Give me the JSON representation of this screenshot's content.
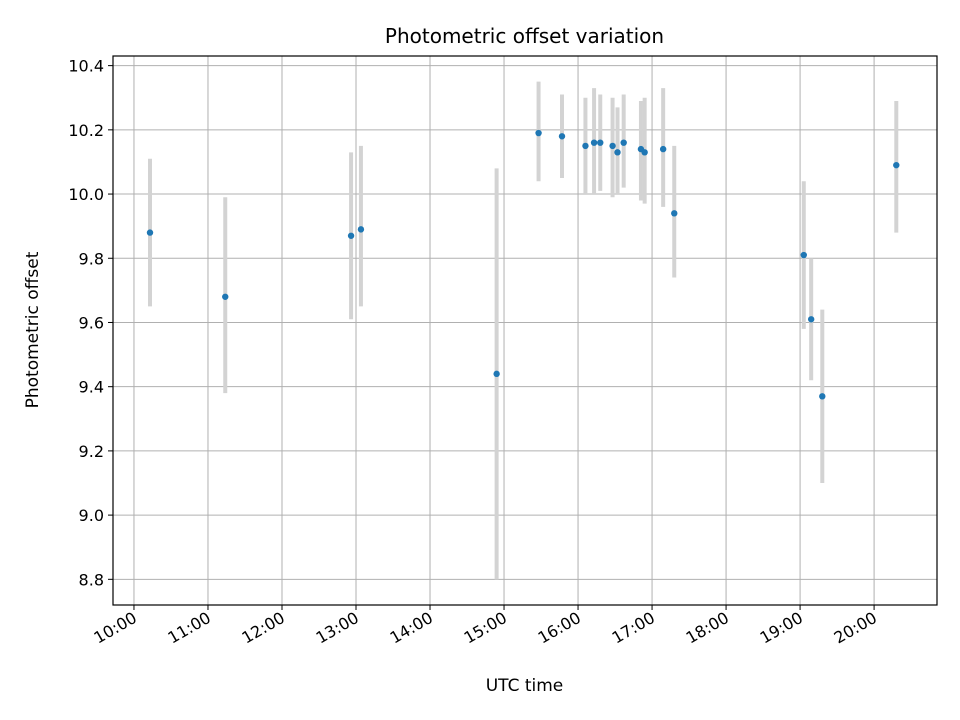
{
  "chart_data": {
    "type": "scatter",
    "title": "Photometric offset variation",
    "xlabel": "UTC time",
    "ylabel": "Photometric offset",
    "x_ticks": [
      "10:00",
      "11:00",
      "12:00",
      "13:00",
      "14:00",
      "15:00",
      "16:00",
      "17:00",
      "18:00",
      "19:00",
      "20:00"
    ],
    "y_ticks": [
      "8.8",
      "9.0",
      "9.2",
      "9.4",
      "9.6",
      "9.8",
      "10.0",
      "10.2",
      "10.4"
    ],
    "xlim": [
      "09:43",
      "20:51"
    ],
    "ylim": [
      8.72,
      10.43
    ],
    "grid": true,
    "colors": {
      "point": "#1f77b4",
      "errorbar": "#d3d3d3",
      "grid": "#b0b0b0"
    },
    "points": [
      {
        "x": "10:13",
        "y": 9.88,
        "ylo": 9.65,
        "yhi": 10.11
      },
      {
        "x": "11:14",
        "y": 9.68,
        "ylo": 9.38,
        "yhi": 9.99
      },
      {
        "x": "12:56",
        "y": 9.87,
        "ylo": 9.61,
        "yhi": 10.13
      },
      {
        "x": "13:04",
        "y": 9.89,
        "ylo": 9.65,
        "yhi": 10.15
      },
      {
        "x": "14:54",
        "y": 9.44,
        "ylo": 8.8,
        "yhi": 10.08
      },
      {
        "x": "15:28",
        "y": 10.19,
        "ylo": 10.04,
        "yhi": 10.35
      },
      {
        "x": "15:47",
        "y": 10.18,
        "ylo": 10.05,
        "yhi": 10.31
      },
      {
        "x": "16:06",
        "y": 10.15,
        "ylo": 10.0,
        "yhi": 10.3
      },
      {
        "x": "16:13",
        "y": 10.16,
        "ylo": 10.0,
        "yhi": 10.33
      },
      {
        "x": "16:18",
        "y": 10.16,
        "ylo": 10.01,
        "yhi": 10.31
      },
      {
        "x": "16:28",
        "y": 10.15,
        "ylo": 9.99,
        "yhi": 10.3
      },
      {
        "x": "16:32",
        "y": 10.13,
        "ylo": 10.0,
        "yhi": 10.27
      },
      {
        "x": "16:37",
        "y": 10.16,
        "ylo": 10.02,
        "yhi": 10.31
      },
      {
        "x": "16:51",
        "y": 10.14,
        "ylo": 9.98,
        "yhi": 10.29
      },
      {
        "x": "16:54",
        "y": 10.13,
        "ylo": 9.97,
        "yhi": 10.3
      },
      {
        "x": "17:09",
        "y": 10.14,
        "ylo": 9.96,
        "yhi": 10.33
      },
      {
        "x": "17:18",
        "y": 9.94,
        "ylo": 9.74,
        "yhi": 10.15
      },
      {
        "x": "19:03",
        "y": 9.81,
        "ylo": 9.58,
        "yhi": 10.04
      },
      {
        "x": "19:09",
        "y": 9.61,
        "ylo": 9.42,
        "yhi": 9.8
      },
      {
        "x": "19:18",
        "y": 9.37,
        "ylo": 9.1,
        "yhi": 9.64
      },
      {
        "x": "20:18",
        "y": 10.09,
        "ylo": 9.88,
        "yhi": 10.29
      }
    ]
  }
}
